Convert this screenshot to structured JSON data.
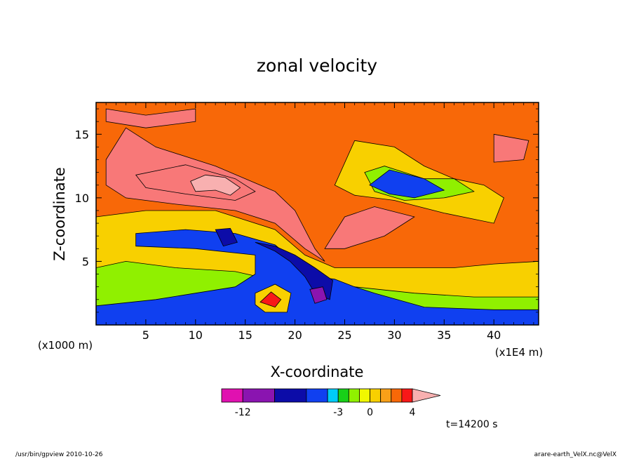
{
  "chart_data": {
    "type": "heatmap",
    "title": "zonal velocity",
    "xlabel": "X-coordinate",
    "ylabel": "Z-coordinate",
    "x_unit_label": "(x1E4 m)",
    "y_unit_label": "(x1000 m)",
    "xlim": [
      0,
      44.5
    ],
    "ylim": [
      0,
      17.5
    ],
    "x_ticks": [
      5,
      10,
      15,
      20,
      25,
      30,
      35,
      40
    ],
    "y_ticks": [
      5,
      10,
      15
    ],
    "colorbar": {
      "levels": [
        -14,
        -12,
        -9,
        -6,
        -4,
        -3,
        -2,
        -1,
        0,
        1,
        2,
        3,
        4,
        6
      ],
      "tick_labels": [
        "-12",
        "-3",
        "0",
        "4"
      ],
      "colors": [
        "#e011b0",
        "#8a14b0",
        "#0c0ca8",
        "#1040f0",
        "#00ccf8",
        "#18d018",
        "#90f000",
        "#f0f800",
        "#f8d000",
        "#f8a018",
        "#f86808",
        "#f81818",
        "#f87878",
        "#f8b0b0"
      ]
    },
    "regions": [
      {
        "value": 2.5,
        "path": [
          [
            0,
            17.5
          ],
          [
            44.5,
            17.5
          ],
          [
            44.5,
            0
          ],
          [
            0,
            0
          ]
        ]
      },
      {
        "value": 4.5,
        "path": [
          [
            1,
            17
          ],
          [
            5,
            16.5
          ],
          [
            10,
            17
          ],
          [
            10,
            16
          ],
          [
            5,
            15.5
          ],
          [
            1,
            16
          ]
        ]
      },
      {
        "value": 4.5,
        "path": [
          [
            1,
            13
          ],
          [
            3,
            15.5
          ],
          [
            6,
            14
          ],
          [
            12,
            12.5
          ],
          [
            18,
            10.5
          ],
          [
            20,
            9
          ],
          [
            22,
            6
          ],
          [
            23,
            5
          ],
          [
            21,
            6
          ],
          [
            18,
            8
          ],
          [
            14,
            9
          ],
          [
            8,
            9.5
          ],
          [
            3,
            10
          ],
          [
            1,
            11
          ]
        ]
      },
      {
        "value": 5.5,
        "path": [
          [
            4,
            11.8
          ],
          [
            9,
            12.6
          ],
          [
            14,
            11.5
          ],
          [
            16,
            10.5
          ],
          [
            14,
            9.8
          ],
          [
            9,
            10.3
          ],
          [
            5,
            10.8
          ]
        ]
      },
      {
        "value": 7,
        "path": [
          [
            9.5,
            11.3
          ],
          [
            11,
            11.8
          ],
          [
            13,
            11.6
          ],
          [
            14.5,
            10.8
          ],
          [
            13.5,
            10.2
          ],
          [
            12,
            10.6
          ],
          [
            10,
            10.5
          ]
        ]
      },
      {
        "value": 4.5,
        "path": [
          [
            23,
            6
          ],
          [
            25,
            8.5
          ],
          [
            28,
            9.3
          ],
          [
            32,
            8.5
          ],
          [
            29,
            7
          ],
          [
            25,
            6
          ]
        ]
      },
      {
        "value": 4.5,
        "path": [
          [
            40,
            15
          ],
          [
            43.5,
            14.5
          ],
          [
            43,
            13
          ],
          [
            40,
            12.8
          ]
        ]
      },
      {
        "value": 0.5,
        "path": [
          [
            0,
            4.5
          ],
          [
            0,
            8.5
          ],
          [
            5,
            9
          ],
          [
            12,
            9
          ],
          [
            18,
            7.5
          ],
          [
            21,
            5.5
          ],
          [
            24,
            4.5
          ],
          [
            30,
            4.5
          ],
          [
            36,
            4.5
          ],
          [
            40,
            4.8
          ],
          [
            44.5,
            5
          ],
          [
            44.5,
            0
          ],
          [
            0,
            0
          ]
        ]
      },
      {
        "value": 0.5,
        "path": [
          [
            24,
            11
          ],
          [
            26,
            14.5
          ],
          [
            30,
            14
          ],
          [
            33,
            12.5
          ],
          [
            36,
            11.5
          ],
          [
            39,
            11
          ],
          [
            41,
            10
          ],
          [
            40,
            8
          ],
          [
            35,
            8.8
          ],
          [
            30,
            9.8
          ],
          [
            26,
            10.2
          ]
        ]
      },
      {
        "value": -2,
        "path": [
          [
            0,
            4.5
          ],
          [
            3,
            5
          ],
          [
            8,
            4.5
          ],
          [
            14,
            4.2
          ],
          [
            18,
            3.5
          ],
          [
            22,
            3
          ],
          [
            26,
            3
          ],
          [
            32,
            2.5
          ],
          [
            38,
            2.2
          ],
          [
            44.5,
            2.2
          ],
          [
            44.5,
            0
          ],
          [
            0,
            0
          ]
        ]
      },
      {
        "value": -2,
        "path": [
          [
            27,
            12
          ],
          [
            29,
            12.5
          ],
          [
            33,
            11.5
          ],
          [
            36,
            11.5
          ],
          [
            38,
            10.5
          ],
          [
            35,
            10
          ],
          [
            31,
            9.8
          ],
          [
            28,
            10.5
          ]
        ]
      },
      {
        "value": -4.5,
        "path": [
          [
            4,
            7.2
          ],
          [
            9,
            7.5
          ],
          [
            14,
            7.2
          ],
          [
            18,
            6.3
          ],
          [
            20,
            5
          ],
          [
            22,
            3.8
          ],
          [
            24,
            3.6
          ],
          [
            26,
            3
          ],
          [
            28,
            2.5
          ],
          [
            33,
            1.4
          ],
          [
            40,
            1.2
          ],
          [
            44.5,
            1.2
          ],
          [
            44.5,
            0
          ],
          [
            0,
            0
          ],
          [
            0,
            1.5
          ],
          [
            6,
            2
          ],
          [
            10,
            2.5
          ],
          [
            14,
            3
          ],
          [
            16,
            4
          ],
          [
            16,
            5.5
          ],
          [
            10,
            6
          ],
          [
            4,
            6.2
          ]
        ]
      },
      {
        "value": -4.5,
        "path": [
          [
            27.5,
            11
          ],
          [
            29.5,
            12.2
          ],
          [
            33,
            11.5
          ],
          [
            35,
            10.6
          ],
          [
            32,
            10
          ],
          [
            29.5,
            10.3
          ]
        ]
      },
      {
        "value": -7.5,
        "path": [
          [
            12,
            7.5
          ],
          [
            13.5,
            7.6
          ],
          [
            14.2,
            6.5
          ],
          [
            12.8,
            6.2
          ]
        ]
      },
      {
        "value": -7.5,
        "path": [
          [
            16,
            6.5
          ],
          [
            18,
            5.8
          ],
          [
            19.5,
            5
          ],
          [
            21,
            3.8
          ],
          [
            22,
            2.5
          ],
          [
            23.5,
            2
          ],
          [
            23.8,
            3.5
          ],
          [
            22,
            4.5
          ],
          [
            20,
            5.5
          ],
          [
            18,
            6.2
          ]
        ]
      },
      {
        "value": -10.5,
        "path": [
          [
            21.5,
            2.8
          ],
          [
            22.8,
            3
          ],
          [
            23.2,
            2
          ],
          [
            22,
            1.7
          ]
        ]
      },
      {
        "value": 0.5,
        "path": [
          [
            16,
            2.5
          ],
          [
            18,
            3.2
          ],
          [
            19.6,
            2.5
          ],
          [
            19.2,
            1
          ],
          [
            17,
            1
          ],
          [
            16,
            1.6
          ]
        ]
      },
      {
        "value": 3.5,
        "path": [
          [
            16.5,
            1.8
          ],
          [
            17.6,
            2.6
          ],
          [
            18.6,
            2
          ],
          [
            18,
            1.4
          ]
        ]
      }
    ]
  }
}
